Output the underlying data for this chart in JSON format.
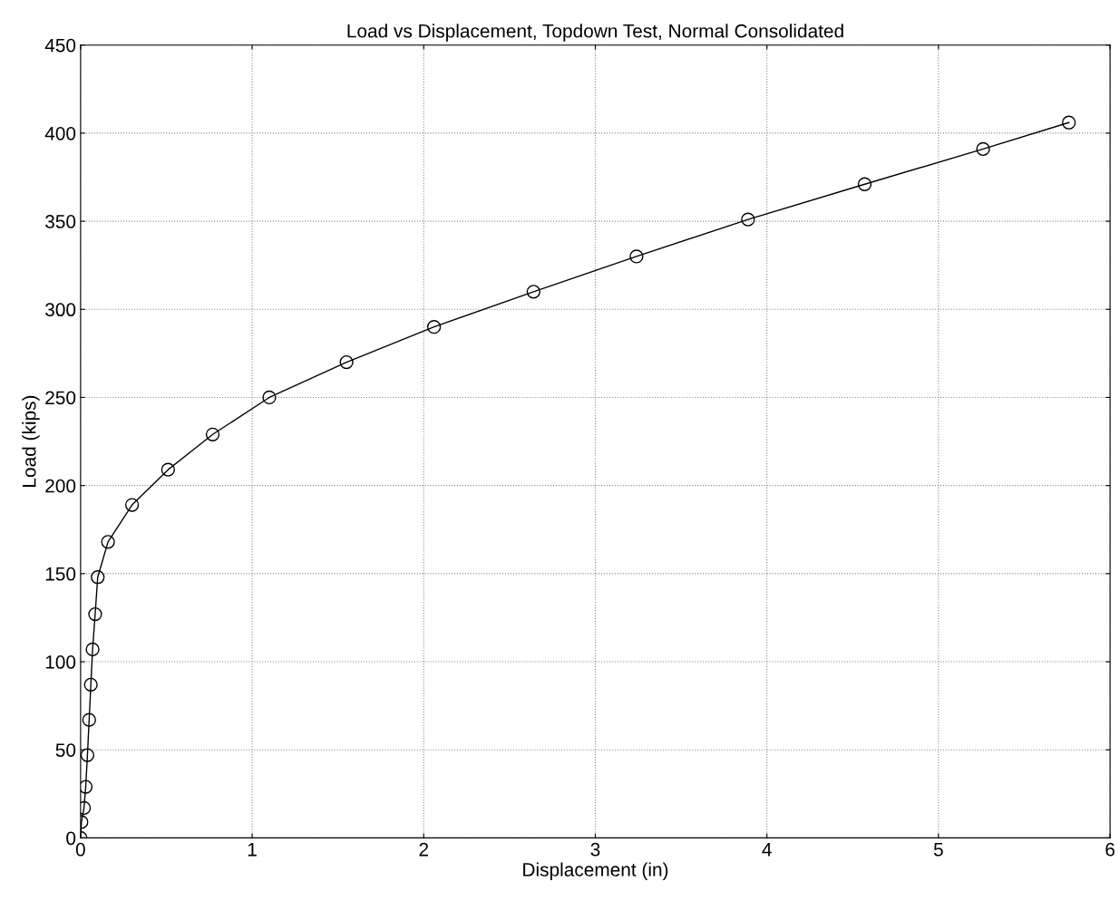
{
  "chart_data": {
    "type": "line",
    "title": "Load vs Displacement, Topdown Test, Normal Consolidated",
    "xlabel": "Displacement (in)",
    "ylabel": "Load (kips)",
    "x": [
      0,
      0.005,
      0.02,
      0.03,
      0.04,
      0.05,
      0.06,
      0.07,
      0.085,
      0.1,
      0.16,
      0.3,
      0.51,
      0.77,
      1.1,
      1.55,
      2.06,
      2.64,
      3.24,
      3.89,
      4.57,
      5.26,
      5.76
    ],
    "series": [
      {
        "color": "#000000",
        "values": [
          0,
          9,
          17,
          29,
          47,
          67,
          87,
          107,
          127,
          148,
          168,
          189,
          209,
          229,
          250,
          270,
          290,
          310,
          330,
          351,
          371,
          391,
          406
        ]
      }
    ],
    "xlim": [
      0,
      6
    ],
    "ylim": [
      0,
      450
    ],
    "xticks": [
      0,
      1,
      2,
      3,
      4,
      5,
      6
    ],
    "yticks": [
      0,
      50,
      100,
      150,
      200,
      250,
      300,
      350,
      400,
      450
    ],
    "grid": true,
    "marker": "circle",
    "line_style": "solid"
  }
}
